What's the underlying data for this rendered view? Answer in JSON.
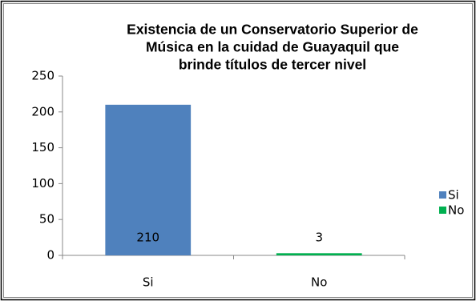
{
  "chart_data": {
    "type": "bar",
    "title": [
      "Existencia de un Conservatorio Superior de",
      "Música en la cuidad de Guayaquil que",
      "brinde títulos de tercer nivel"
    ],
    "categories": [
      "Si",
      "No"
    ],
    "values": [
      210,
      3
    ],
    "colors": [
      "#4f81bd",
      "#00b050"
    ],
    "ylim": [
      0,
      250
    ],
    "yticks": [
      0,
      50,
      100,
      150,
      200,
      250
    ],
    "grid": false,
    "legend": "right"
  }
}
